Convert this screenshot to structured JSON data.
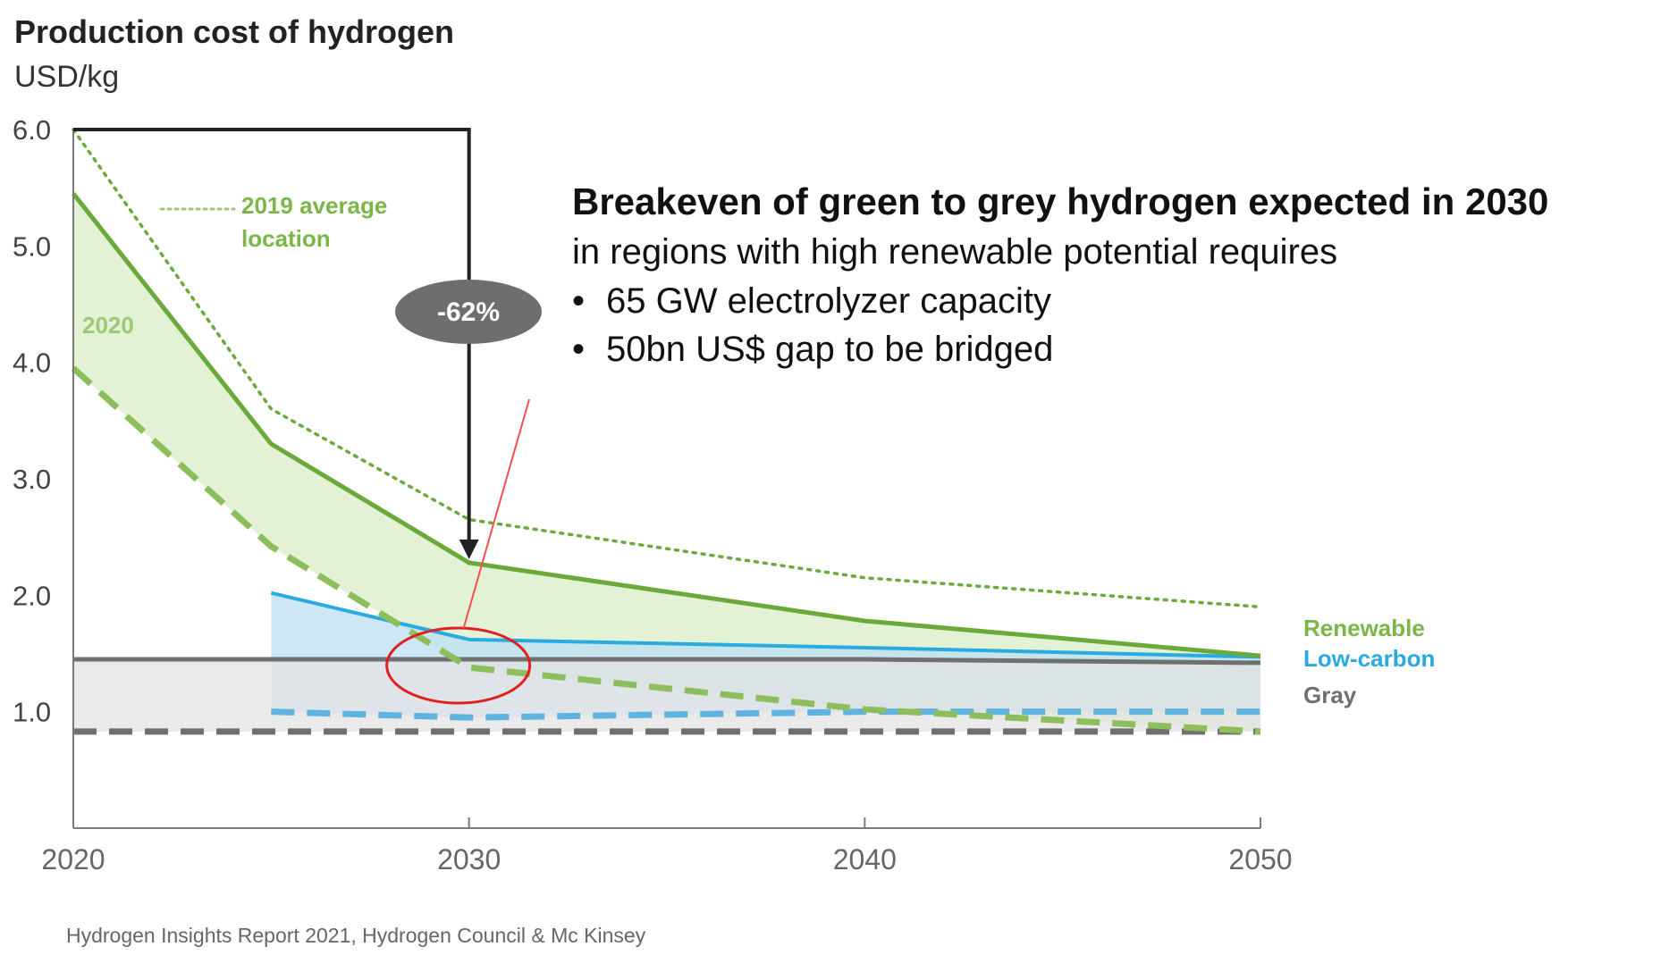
{
  "chart_data": {
    "type": "line",
    "title": "Production cost of hydrogen",
    "ylabel": "USD/kg",
    "xlabel": "",
    "xlim": [
      2020,
      2050
    ],
    "ylim": [
      0,
      6.0
    ],
    "x_ticks": [
      2020,
      2030,
      2040,
      2050
    ],
    "y_ticks": [
      1.0,
      2.0,
      3.0,
      4.0,
      5.0,
      6.0
    ],
    "y_tick_labels": [
      "1.0",
      "2.0",
      "3.0",
      "4.0",
      "5.0",
      "6.0"
    ],
    "grid": false,
    "series": [
      {
        "name": "2019 average location",
        "key": "avg2019",
        "color": "#6aaa3a",
        "style": "dotted",
        "x": [
          2020,
          2025,
          2030,
          2040,
          2050
        ],
        "y": [
          6.0,
          3.6,
          2.65,
          2.15,
          1.9
        ]
      },
      {
        "name": "Renewable",
        "key": "renew_high",
        "color": "#6aaa3a",
        "style": "solid",
        "x": [
          2020,
          2025,
          2030,
          2040,
          2050
        ],
        "y": [
          5.45,
          3.3,
          2.28,
          1.78,
          1.48
        ]
      },
      {
        "name": "Renewable",
        "key": "renew_low",
        "color": "#8dbe5c",
        "style": "dashed",
        "x": [
          2020,
          2025,
          2030,
          2040,
          2050
        ],
        "y": [
          3.95,
          2.42,
          1.38,
          1.02,
          0.83
        ]
      },
      {
        "name": "Low-carbon",
        "key": "lowc_high",
        "color": "#29abe2",
        "style": "solid",
        "x": [
          2025,
          2030,
          2040,
          2050
        ],
        "y": [
          2.02,
          1.62,
          1.55,
          1.47
        ]
      },
      {
        "name": "Low-carbon",
        "key": "lowc_low",
        "color": "#5fb3e0",
        "style": "dashed",
        "x": [
          2025,
          2030,
          2040,
          2050
        ],
        "y": [
          1.0,
          0.95,
          1.0,
          1.0
        ]
      },
      {
        "name": "Gray",
        "key": "gray_high",
        "color": "#707070",
        "style": "solid",
        "x": [
          2020,
          2030,
          2040,
          2050
        ],
        "y": [
          1.45,
          1.45,
          1.45,
          1.42
        ]
      },
      {
        "name": "Gray",
        "key": "gray_low",
        "color": "#707070",
        "style": "dashed",
        "x": [
          2020,
          2030,
          2040,
          2050
        ],
        "y": [
          0.83,
          0.83,
          0.83,
          0.83
        ]
      }
    ],
    "bands": [
      {
        "name": "Renewable",
        "upper": "renew_high",
        "lower": "renew_low",
        "color": "#d9edc7"
      },
      {
        "name": "Low-carbon",
        "upper": "lowc_high",
        "lower": "lowc_low",
        "color": "#bcdff3"
      },
      {
        "name": "Gray",
        "upper": "gray_high",
        "lower": "gray_low",
        "color": "#e3e3e3"
      }
    ],
    "legend": [
      {
        "label": "Renewable",
        "color": "#7ab648"
      },
      {
        "label": "Low-carbon",
        "color": "#29abe2"
      },
      {
        "label": "Gray",
        "color": "#707070"
      }
    ],
    "legend_position": "right",
    "annotations": {
      "avg_label_line1": "2019 average",
      "avg_label_line2": "location",
      "year_label": "2020",
      "reduction_badge": "-62%",
      "reduction_from": {
        "x": 2020,
        "y": 6.0
      },
      "reduction_to": {
        "x": 2030,
        "y": 2.28
      },
      "breakeven_circle": {
        "x": 2030,
        "y": 1.45
      },
      "headline": "Breakeven of green  to  grey hydrogen expected in 2030",
      "subline": "in regions with high renewable potential requires",
      "bullets": [
        "65 GW electrolyzer capacity",
        "50bn US$ gap to be bridged"
      ],
      "bullet_symbol": "•"
    }
  },
  "source": "Hydrogen Insights Report 2021, Hydrogen Council & Mc Kinsey"
}
